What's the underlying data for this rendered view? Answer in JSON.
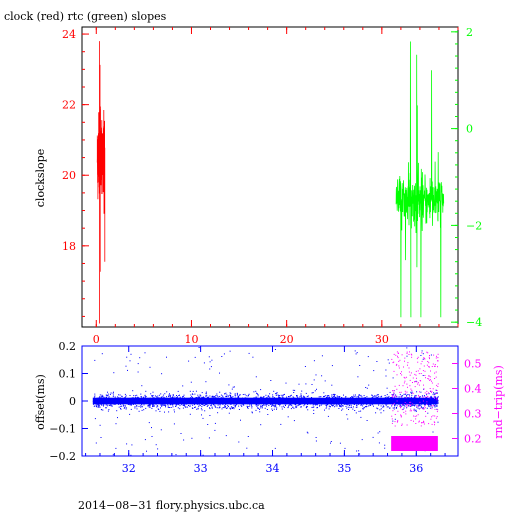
{
  "chart_data": [
    {
      "type": "line",
      "title": "clock (red) rtc (green) slopes",
      "ylabel": "clockslope",
      "xlabel": "",
      "xlim": [
        -1.5,
        38
      ],
      "x_ticks": [
        0,
        10,
        20,
        30
      ],
      "ylim_left": [
        15.7,
        24.2
      ],
      "y_ticks_left": [
        18,
        20,
        22,
        24
      ],
      "ylim_right": [
        -4.1,
        2.1
      ],
      "y_ticks_right": [
        -4,
        -2,
        0,
        2
      ],
      "colors": {
        "clock": "#ff0000",
        "rtc": "#00ff00",
        "axis": "#000000"
      },
      "series": [
        {
          "color": "#ff0000",
          "axis": "left",
          "x_range": [
            0.1,
            0.9
          ],
          "y_center": 20.5,
          "y_min": 15.8,
          "y_max": 23.8,
          "y_spread": 0.9
        },
        {
          "color": "#00ff00",
          "axis": "right",
          "x_range": [
            31.5,
            36.5
          ],
          "y_center": -1.5,
          "y_min": -3.9,
          "y_max": 1.8,
          "y_spread": 0.5
        }
      ]
    },
    {
      "type": "scatter",
      "ylabel": "offset(ms)",
      "ylabel_right": "rnd−trip(ms)",
      "xlim": [
        31.35,
        36.58
      ],
      "x_ticks": [
        "32",
        "33",
        "34",
        "35",
        "36"
      ],
      "x_tick_values": [
        32,
        33,
        34,
        35,
        36
      ],
      "ylim_left": [
        -0.2,
        0.2
      ],
      "y_ticks_left": [
        "0.2",
        "0.1",
        "0",
        "−0.1",
        "−0.2"
      ],
      "y_tick_values_left": [
        0.2,
        0.1,
        0,
        -0.1,
        -0.2
      ],
      "ylim_right": [
        0.13,
        0.57
      ],
      "y_ticks_right": [
        "0.5",
        "0.4",
        "0.3",
        "0.2"
      ],
      "y_tick_values_right": [
        0.5,
        0.4,
        0.3,
        0.2
      ],
      "colors": {
        "offset": "#0000ff",
        "rtt": "#ff00ff"
      },
      "series": [
        {
          "color": "#0000ff",
          "axis": "left",
          "x_range": [
            31.5,
            36.3
          ],
          "y_center": 0.0,
          "y_band": 0.03,
          "outlier_range": [
            -0.2,
            0.2
          ]
        },
        {
          "color": "#ff00ff",
          "axis": "right",
          "x_range": [
            35.65,
            36.3
          ],
          "y_center": 0.18,
          "y_band": 0.03,
          "outlier_range": [
            0.25,
            0.55
          ]
        }
      ]
    }
  ],
  "footer": {
    "text": "2014−08−31 flory.physics.ubc.ca"
  }
}
